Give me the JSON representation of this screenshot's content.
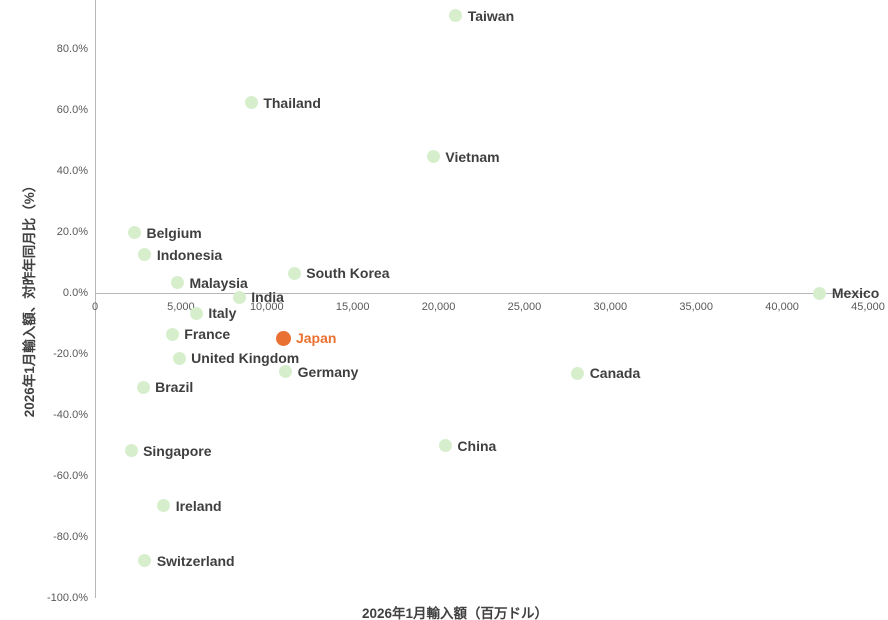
{
  "chart_data": {
    "type": "scatter",
    "title": "",
    "xlabel": "2026年1月輸入額（百万ドル）",
    "ylabel": "2026年1月輸入額、対昨年同月比（%）",
    "xlim": [
      0,
      45000
    ],
    "ylim": [
      -100,
      100
    ],
    "grid": false,
    "legend": false,
    "xticks": [
      {
        "value": 0,
        "label": "0"
      },
      {
        "value": 5000,
        "label": "5,000"
      },
      {
        "value": 10000,
        "label": "10,000"
      },
      {
        "value": 15000,
        "label": "15,000"
      },
      {
        "value": 20000,
        "label": "20,000"
      },
      {
        "value": 25000,
        "label": "25,000"
      },
      {
        "value": 30000,
        "label": "30,000"
      },
      {
        "value": 35000,
        "label": "35,000"
      },
      {
        "value": 40000,
        "label": "40,000"
      },
      {
        "value": 45000,
        "label": "45,000"
      }
    ],
    "yticks": [
      {
        "value": 80,
        "label": "80.0%"
      },
      {
        "value": 60,
        "label": "60.0%"
      },
      {
        "value": 40,
        "label": "40.0%"
      },
      {
        "value": 20,
        "label": "20.0%"
      },
      {
        "value": 0,
        "label": "0.0%"
      },
      {
        "value": -20,
        "label": "-20.0%"
      },
      {
        "value": -40,
        "label": "-40.0%"
      },
      {
        "value": -60,
        "label": "-60.0%"
      },
      {
        "value": -80,
        "label": "-80.0%"
      },
      {
        "value": -100,
        "label": "-100.0%"
      }
    ],
    "colors": {
      "default_marker": "#D7EECD",
      "highlight_marker": "#E97132",
      "default_label": "#3F3F3F",
      "highlight_label": "#E97132",
      "tick": "#595959",
      "axis": "#B7B7B7"
    },
    "points": [
      {
        "label": "Taiwan",
        "x": 21000,
        "y": 91.0,
        "highlight": false
      },
      {
        "label": "Thailand",
        "x": 9100,
        "y": 62.4,
        "highlight": false
      },
      {
        "label": "Vietnam",
        "x": 19700,
        "y": 44.7,
        "highlight": false
      },
      {
        "label": "Belgium",
        "x": 2300,
        "y": 19.7,
        "highlight": false
      },
      {
        "label": "Indonesia",
        "x": 2900,
        "y": 12.6,
        "highlight": false
      },
      {
        "label": "South Korea",
        "x": 11600,
        "y": 6.5,
        "highlight": false
      },
      {
        "label": "Malaysia",
        "x": 4800,
        "y": 3.4,
        "highlight": false
      },
      {
        "label": "India",
        "x": 8400,
        "y": -1.4,
        "highlight": false
      },
      {
        "label": "Mexico",
        "x": 42200,
        "y": -0.1,
        "highlight": false
      },
      {
        "label": "Italy",
        "x": 5900,
        "y": -6.7,
        "highlight": false
      },
      {
        "label": "France",
        "x": 4500,
        "y": -13.5,
        "highlight": false
      },
      {
        "label": "Japan",
        "x": 11000,
        "y": -14.9,
        "highlight": true
      },
      {
        "label": "United Kingdom",
        "x": 4900,
        "y": -21.4,
        "highlight": false
      },
      {
        "label": "Germany",
        "x": 11100,
        "y": -25.8,
        "highlight": false
      },
      {
        "label": "Canada",
        "x": 28100,
        "y": -26.4,
        "highlight": false
      },
      {
        "label": "Brazil",
        "x": 2800,
        "y": -31.0,
        "highlight": false
      },
      {
        "label": "China",
        "x": 20400,
        "y": -50.2,
        "highlight": false
      },
      {
        "label": "Singapore",
        "x": 2100,
        "y": -51.8,
        "highlight": false
      },
      {
        "label": "Ireland",
        "x": 4000,
        "y": -69.8,
        "highlight": false
      },
      {
        "label": "Switzerland",
        "x": 2900,
        "y": -87.9,
        "highlight": false
      }
    ]
  }
}
